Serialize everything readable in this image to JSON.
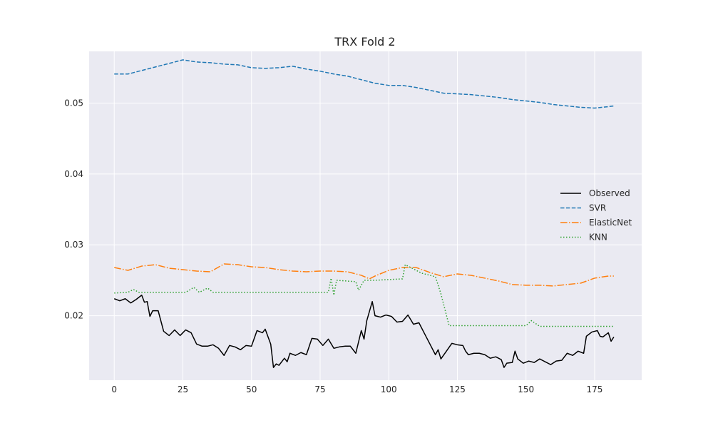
{
  "chart_data": {
    "type": "line",
    "title": "TRX Fold 2",
    "xlabel": "",
    "ylabel": "",
    "xlim": [
      -9.15,
      192.15
    ],
    "ylim": [
      0.0109,
      0.0573
    ],
    "xticks": [
      0,
      25,
      50,
      75,
      100,
      125,
      150,
      175
    ],
    "yticks": [
      0.02,
      0.03,
      0.04,
      0.05
    ],
    "ytick_labels": [
      "0.02",
      "0.03",
      "0.04",
      "0.05"
    ],
    "grid": true,
    "legend_position": "center-right",
    "series": [
      {
        "name": "Observed",
        "color": "#000000",
        "dash": "solid",
        "points": [
          [
            0,
            0.0224
          ],
          [
            2,
            0.0221
          ],
          [
            4,
            0.0224
          ],
          [
            6,
            0.0218
          ],
          [
            8,
            0.0223
          ],
          [
            10,
            0.0229
          ],
          [
            11,
            0.0219
          ],
          [
            12,
            0.022
          ],
          [
            13,
            0.0199
          ],
          [
            14,
            0.0207
          ],
          [
            16,
            0.0207
          ],
          [
            18,
            0.0178
          ],
          [
            20,
            0.0172
          ],
          [
            22,
            0.018
          ],
          [
            24,
            0.0172
          ],
          [
            26,
            0.018
          ],
          [
            28,
            0.0176
          ],
          [
            30,
            0.016
          ],
          [
            32,
            0.0157
          ],
          [
            34,
            0.0157
          ],
          [
            36,
            0.0159
          ],
          [
            38,
            0.0154
          ],
          [
            40,
            0.0144
          ],
          [
            42,
            0.0158
          ],
          [
            44,
            0.0156
          ],
          [
            46,
            0.0152
          ],
          [
            48,
            0.0158
          ],
          [
            50,
            0.0157
          ],
          [
            52,
            0.0179
          ],
          [
            54,
            0.0176
          ],
          [
            55,
            0.0181
          ],
          [
            57,
            0.016
          ],
          [
            58,
            0.0127
          ],
          [
            59,
            0.0132
          ],
          [
            60,
            0.013
          ],
          [
            62,
            0.014
          ],
          [
            63,
            0.0135
          ],
          [
            64,
            0.0147
          ],
          [
            66,
            0.0144
          ],
          [
            68,
            0.0148
          ],
          [
            70,
            0.0145
          ],
          [
            72,
            0.0168
          ],
          [
            74,
            0.0167
          ],
          [
            76,
            0.0158
          ],
          [
            78,
            0.0167
          ],
          [
            80,
            0.0154
          ],
          [
            82,
            0.0156
          ],
          [
            84,
            0.0157
          ],
          [
            86,
            0.0157
          ],
          [
            88,
            0.0147
          ],
          [
            90,
            0.0179
          ],
          [
            91,
            0.0167
          ],
          [
            92,
            0.0193
          ],
          [
            94,
            0.022
          ],
          [
            95,
            0.02
          ],
          [
            97,
            0.0198
          ],
          [
            99,
            0.0201
          ],
          [
            101,
            0.0199
          ],
          [
            103,
            0.0191
          ],
          [
            105,
            0.0192
          ],
          [
            107,
            0.0201
          ],
          [
            109,
            0.0188
          ],
          [
            111,
            0.019
          ],
          [
            113,
            0.0175
          ],
          [
            115,
            0.016
          ],
          [
            117,
            0.0145
          ],
          [
            118,
            0.0152
          ],
          [
            119,
            0.0139
          ],
          [
            121,
            0.015
          ],
          [
            123,
            0.0161
          ],
          [
            125,
            0.0159
          ],
          [
            127,
            0.0158
          ],
          [
            128,
            0.015
          ],
          [
            129,
            0.0145
          ],
          [
            131,
            0.0147
          ],
          [
            133,
            0.0147
          ],
          [
            135,
            0.0145
          ],
          [
            137,
            0.014
          ],
          [
            139,
            0.0142
          ],
          [
            141,
            0.0138
          ],
          [
            142,
            0.0127
          ],
          [
            143,
            0.0133
          ],
          [
            145,
            0.0134
          ],
          [
            146,
            0.015
          ],
          [
            147,
            0.0139
          ],
          [
            149,
            0.0133
          ],
          [
            151,
            0.0136
          ],
          [
            153,
            0.0134
          ],
          [
            155,
            0.0139
          ],
          [
            157,
            0.0135
          ],
          [
            159,
            0.0131
          ],
          [
            161,
            0.0136
          ],
          [
            163,
            0.0137
          ],
          [
            165,
            0.0147
          ],
          [
            167,
            0.0144
          ],
          [
            169,
            0.015
          ],
          [
            171,
            0.0147
          ],
          [
            172,
            0.0171
          ],
          [
            174,
            0.0177
          ],
          [
            176,
            0.0179
          ],
          [
            177,
            0.0171
          ],
          [
            178,
            0.017
          ],
          [
            180,
            0.0176
          ],
          [
            181,
            0.0164
          ],
          [
            182,
            0.017
          ]
        ]
      },
      {
        "name": "SVR",
        "color": "#1f77b4",
        "dash": "dashed",
        "points": [
          [
            0,
            0.0541
          ],
          [
            5,
            0.0541
          ],
          [
            10,
            0.0546
          ],
          [
            15,
            0.0551
          ],
          [
            20,
            0.0556
          ],
          [
            25,
            0.0561
          ],
          [
            30,
            0.0558
          ],
          [
            35,
            0.0557
          ],
          [
            40,
            0.0555
          ],
          [
            45,
            0.0554
          ],
          [
            50,
            0.055
          ],
          [
            55,
            0.0549
          ],
          [
            60,
            0.055
          ],
          [
            65,
            0.0552
          ],
          [
            70,
            0.0548
          ],
          [
            75,
            0.0545
          ],
          [
            80,
            0.0541
          ],
          [
            85,
            0.0538
          ],
          [
            90,
            0.0533
          ],
          [
            95,
            0.0528
          ],
          [
            100,
            0.0525
          ],
          [
            105,
            0.0525
          ],
          [
            110,
            0.0522
          ],
          [
            115,
            0.0518
          ],
          [
            120,
            0.0514
          ],
          [
            125,
            0.0513
          ],
          [
            130,
            0.0512
          ],
          [
            135,
            0.051
          ],
          [
            140,
            0.0508
          ],
          [
            145,
            0.0505
          ],
          [
            150,
            0.0503
          ],
          [
            155,
            0.0501
          ],
          [
            160,
            0.0498
          ],
          [
            165,
            0.0496
          ],
          [
            170,
            0.0494
          ],
          [
            175,
            0.0493
          ],
          [
            180,
            0.0495
          ],
          [
            182,
            0.0496
          ]
        ]
      },
      {
        "name": "ElasticNet",
        "color": "#ff7f0e",
        "dash": "dashdot",
        "points": [
          [
            0,
            0.0268
          ],
          [
            5,
            0.0264
          ],
          [
            10,
            0.027
          ],
          [
            15,
            0.0272
          ],
          [
            20,
            0.0267
          ],
          [
            25,
            0.0265
          ],
          [
            30,
            0.0263
          ],
          [
            35,
            0.0262
          ],
          [
            40,
            0.0273
          ],
          [
            45,
            0.0272
          ],
          [
            50,
            0.0269
          ],
          [
            55,
            0.0268
          ],
          [
            60,
            0.0265
          ],
          [
            65,
            0.0263
          ],
          [
            70,
            0.0262
          ],
          [
            75,
            0.0263
          ],
          [
            80,
            0.0263
          ],
          [
            85,
            0.0262
          ],
          [
            90,
            0.0257
          ],
          [
            93,
            0.0252
          ],
          [
            95,
            0.0256
          ],
          [
            100,
            0.0264
          ],
          [
            105,
            0.0268
          ],
          [
            110,
            0.0268
          ],
          [
            115,
            0.0261
          ],
          [
            120,
            0.0255
          ],
          [
            125,
            0.0259
          ],
          [
            130,
            0.0257
          ],
          [
            135,
            0.0253
          ],
          [
            140,
            0.0249
          ],
          [
            145,
            0.0244
          ],
          [
            150,
            0.0243
          ],
          [
            155,
            0.0243
          ],
          [
            160,
            0.0242
          ],
          [
            165,
            0.0244
          ],
          [
            170,
            0.0246
          ],
          [
            175,
            0.0253
          ],
          [
            180,
            0.0256
          ],
          [
            182,
            0.0256
          ]
        ]
      },
      {
        "name": "KNN",
        "color": "#2ca02c",
        "dash": "dotted",
        "points": [
          [
            0,
            0.0232
          ],
          [
            5,
            0.0233
          ],
          [
            7,
            0.0237
          ],
          [
            9,
            0.0233
          ],
          [
            20,
            0.0233
          ],
          [
            26,
            0.0233
          ],
          [
            29,
            0.024
          ],
          [
            31,
            0.0233
          ],
          [
            34,
            0.0239
          ],
          [
            36,
            0.0233
          ],
          [
            78,
            0.0233
          ],
          [
            79,
            0.0253
          ],
          [
            80,
            0.0229
          ],
          [
            81,
            0.025
          ],
          [
            88,
            0.0248
          ],
          [
            89,
            0.0236
          ],
          [
            91,
            0.025
          ],
          [
            95,
            0.025
          ],
          [
            105,
            0.0252
          ],
          [
            106,
            0.0272
          ],
          [
            108,
            0.0268
          ],
          [
            112,
            0.026
          ],
          [
            117,
            0.0255
          ],
          [
            119,
            0.0231
          ],
          [
            122,
            0.0186
          ],
          [
            150,
            0.0186
          ],
          [
            152,
            0.0193
          ],
          [
            155,
            0.0185
          ],
          [
            182,
            0.0185
          ]
        ]
      }
    ]
  }
}
